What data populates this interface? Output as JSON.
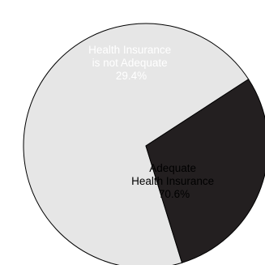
{
  "chart_data": {
    "type": "pie",
    "slices": [
      {
        "label_lines": [
          "Adequate",
          "Health Insurance"
        ],
        "pct_label": "70.6%",
        "value": 70.6,
        "color": "#e6e6e6",
        "text_color": "#000000"
      },
      {
        "label_lines": [
          "Health Insurance",
          "is not Adequate"
        ],
        "pct_label": "29.4%",
        "value": 29.4,
        "color": "#231f20",
        "text_color": "#ffffff"
      }
    ],
    "start_angle_deg": 33,
    "direction": "counterclockwise",
    "stroke_color": "#000000"
  }
}
